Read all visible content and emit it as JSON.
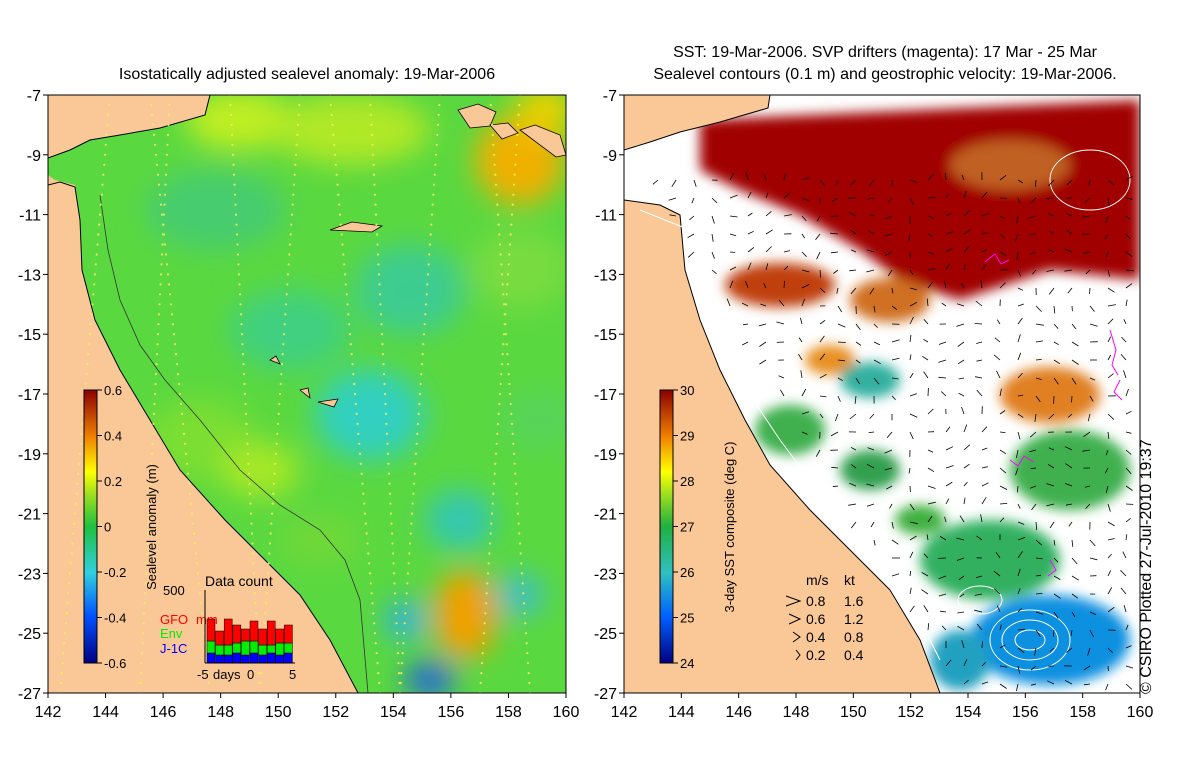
{
  "left_panel": {
    "title": "Isostatically adjusted sealevel anomaly: 19-Mar-2006",
    "x_ticks": [
      "142",
      "144",
      "146",
      "148",
      "150",
      "152",
      "154",
      "156",
      "158",
      "160"
    ],
    "y_ticks": [
      "-7",
      "-9",
      "-11",
      "-13",
      "-15",
      "-17",
      "-19",
      "-21",
      "-23",
      "-25",
      "-27"
    ],
    "colorbar": {
      "label": "Sealevel anomaly (m)",
      "ticks": [
        "0.6",
        "0.4",
        "0.2",
        "0",
        "-0.2",
        "-0.4",
        "-0.6"
      ],
      "range": [
        -0.6,
        0.6
      ]
    },
    "data_count": {
      "title": "Data count",
      "max_label": "500",
      "series": [
        {
          "name": "GFO",
          "color": "#ff0000"
        },
        {
          "name": "Env",
          "color": "#00ee00"
        },
        {
          "name": "J-1C",
          "color": "#0000ff"
        }
      ],
      "unit": "mm",
      "x_ticks": [
        "-5",
        "0",
        "5"
      ],
      "x_label": "days"
    }
  },
  "right_panel": {
    "title_line1": "SST: 19-Mar-2006. SVP drifters (magenta): 17 Mar - 25 Mar",
    "title_line2": "Sealevel contours (0.1 m) and geostrophic velocity: 19-Mar-2006.",
    "x_ticks": [
      "142",
      "144",
      "146",
      "148",
      "150",
      "152",
      "154",
      "156",
      "158",
      "160"
    ],
    "y_ticks": [
      "-7",
      "-9",
      "-11",
      "-13",
      "-15",
      "-17",
      "-19",
      "-21",
      "-23",
      "-25",
      "-27"
    ],
    "colorbar": {
      "label": "3-day SST composite (deg C)",
      "ticks": [
        "30",
        "29",
        "28",
        "27",
        "26",
        "25",
        "24"
      ],
      "range": [
        24,
        30
      ]
    },
    "velocity_legend": {
      "headers": [
        "m/s",
        "kt"
      ],
      "rows": [
        [
          "0.8",
          "1.6"
        ],
        [
          "0.6",
          "1.2"
        ],
        [
          "0.4",
          "0.8"
        ],
        [
          "0.2",
          "0.4"
        ]
      ]
    }
  },
  "copyright": "© CSIRO Plotted 27-Jul-2010 19:37",
  "colors": {
    "land": "#fac896",
    "cloud": "#ffffff"
  }
}
